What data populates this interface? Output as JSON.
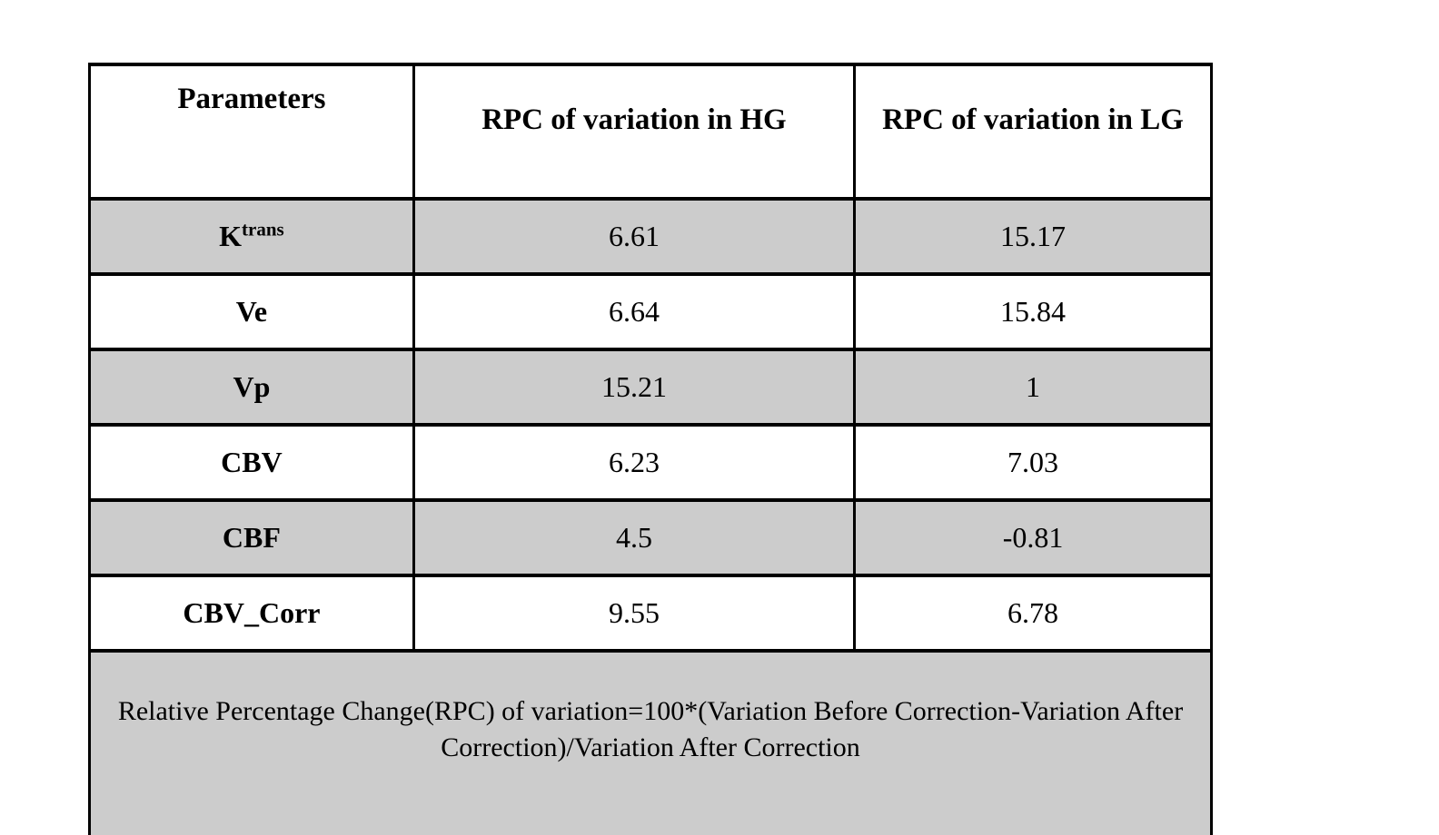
{
  "table": {
    "columns": [
      "Parameters",
      "RPC of variation in HG",
      "RPC of variation in LG"
    ],
    "rows": [
      {
        "param": "K",
        "param_sup": "trans",
        "hg": "6.61",
        "lg": "15.17"
      },
      {
        "param": "Ve",
        "param_sup": "",
        "hg": "6.64",
        "lg": "15.84"
      },
      {
        "param": "Vp",
        "param_sup": "",
        "hg": "15.21",
        "lg": "1"
      },
      {
        "param": "CBV",
        "param_sup": "",
        "hg": "6.23",
        "lg": "7.03"
      },
      {
        "param": "CBF",
        "param_sup": "",
        "hg": "4.5",
        "lg": "-0.81"
      },
      {
        "param": "CBV_Corr",
        "param_sup": "",
        "hg": "9.55",
        "lg": "6.78"
      }
    ],
    "footnote": "Relative Percentage Change(RPC) of variation=100*(Variation Before Correction-Variation After Correction)/Variation After Correction"
  },
  "colors": {
    "row_shade": "#cccccc",
    "border": "#000000",
    "background": "#ffffff"
  }
}
